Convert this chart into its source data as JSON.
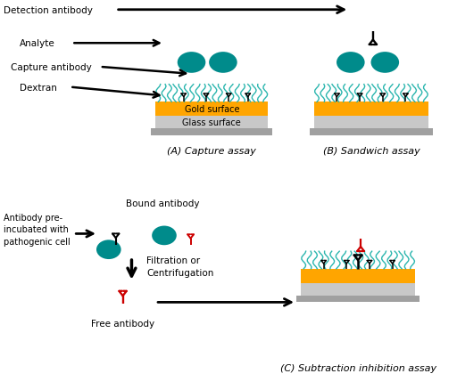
{
  "bg_color": "#ffffff",
  "teal": "#008B8B",
  "gold": "#FFA500",
  "light_gray": "#C8C8C8",
  "dark_gray": "#A0A0A0",
  "black": "#000000",
  "red": "#CC0000",
  "dextran_color": "#20B2AA",
  "labels": {
    "detection_antibody": "Detection antibody",
    "analyte": "Analyte",
    "capture_antibody": "Capture antibody",
    "dextran": "Dextran",
    "gold_surface": "Gold surface",
    "glass_surface": "Glass surface",
    "capture_assay": "(A) Capture assay",
    "sandwich_assay": "(B) Sandwich assay",
    "bound_antibody": "Bound antibody",
    "antibody_pre": "Antibody pre-\nincubated with\npathogenic cell",
    "filtration": "Filtration or\nCentrifugation",
    "free_antibody": "Free antibody",
    "subtraction": "(C) Subtraction inhibition assay"
  },
  "fontsize": 7.5,
  "fontsize_label": 8.0
}
